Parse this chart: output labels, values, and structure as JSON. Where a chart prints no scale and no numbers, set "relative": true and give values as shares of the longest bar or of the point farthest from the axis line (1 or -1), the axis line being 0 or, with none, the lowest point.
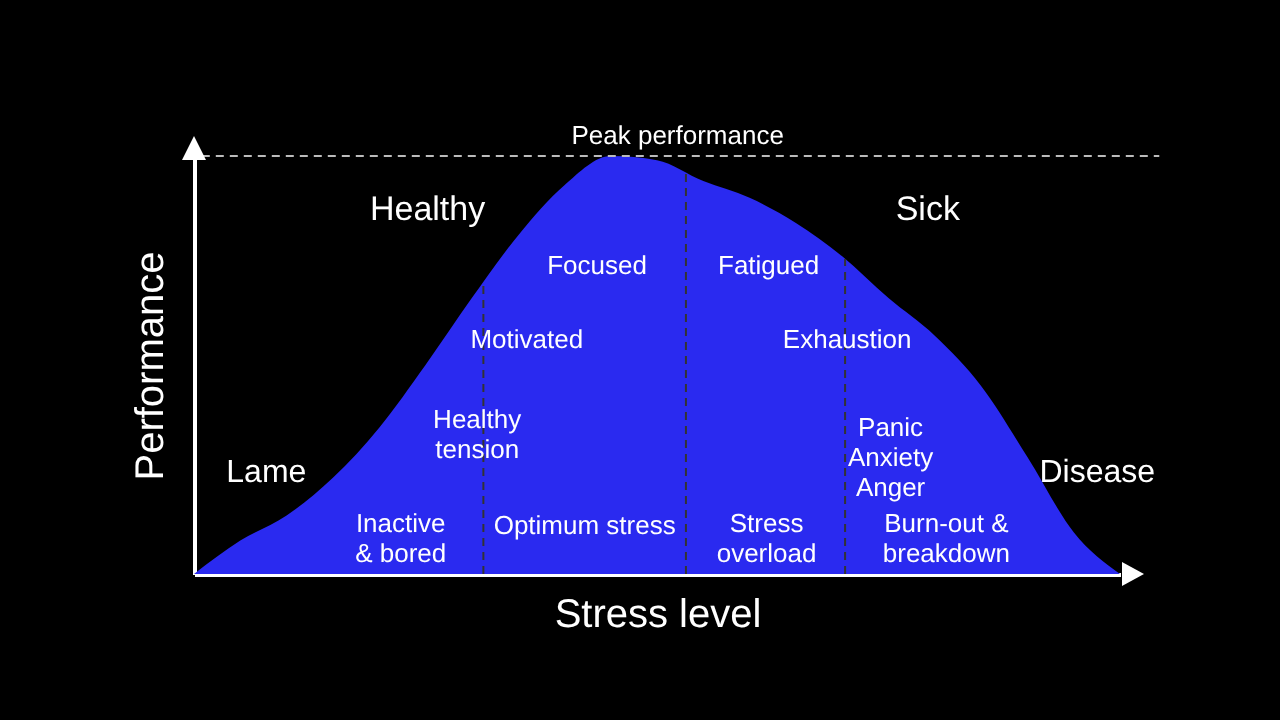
{
  "chart_data": {
    "type": "area",
    "relative": true,
    "xlabel": "Stress level",
    "ylabel": "Performance",
    "categories": [
      null,
      null,
      null,
      null,
      null,
      null,
      null,
      null,
      null,
      null,
      null,
      null,
      null,
      null,
      null,
      null,
      null,
      null,
      null,
      null,
      null
    ],
    "series": [
      {
        "color": "#2a2af0",
        "values": [
          0.0,
          0.08,
          0.14,
          0.23,
          0.35,
          0.5,
          0.66,
          0.81,
          0.93,
          1.0,
          0.99,
          0.94,
          0.9,
          0.84,
          0.76,
          0.66,
          0.57,
          0.45,
          0.28,
          0.1,
          0.0
        ]
      }
    ],
    "ref_lines": [
      {
        "axis": "y",
        "value": 1,
        "label": "Peak performance",
        "line_style": "dashed"
      }
    ],
    "annotations": [
      "Healthy",
      "Sick",
      "Focused",
      "Fatigued",
      "Motivated",
      "Exhaustion",
      "Healthy\ntension",
      "Panic\nAnxiety\nAnger",
      "Lame",
      "Disease",
      "Inactive\n& bored",
      "Optimum stress",
      "Stress\noverload",
      "Burn-out &\nbreakdown"
    ]
  }
}
